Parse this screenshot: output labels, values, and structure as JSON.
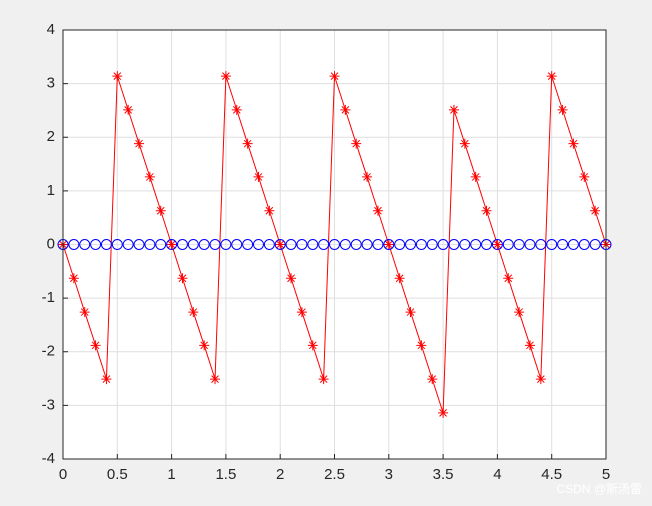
{
  "chart_data": {
    "type": "line",
    "x": [
      0,
      0.1,
      0.2,
      0.3,
      0.4,
      0.5,
      0.6,
      0.7,
      0.8,
      0.9,
      1,
      1.1,
      1.2,
      1.3,
      1.4,
      1.5,
      1.6,
      1.7,
      1.8,
      1.9,
      2,
      2.1,
      2.2,
      2.3,
      2.4,
      2.5,
      2.6,
      2.7,
      2.8,
      2.9,
      3,
      3.1,
      3.2,
      3.3,
      3.4,
      3.5,
      3.6,
      3.7,
      3.8,
      3.9,
      4,
      4.1,
      4.2,
      4.3,
      4.4,
      4.5,
      4.6,
      4.7,
      4.8,
      4.9,
      5
    ],
    "series": [
      {
        "color": "#ff0000",
        "marker": "star",
        "line": true,
        "values": [
          0,
          -0.63,
          -1.26,
          -1.88,
          -2.51,
          3.14,
          2.51,
          1.88,
          1.26,
          0.63,
          0,
          -0.63,
          -1.26,
          -1.88,
          -2.51,
          3.14,
          2.51,
          1.88,
          1.26,
          0.63,
          0,
          -0.63,
          -1.26,
          -1.88,
          -2.51,
          3.14,
          2.51,
          1.88,
          1.26,
          0.63,
          0,
          -0.63,
          -1.26,
          -1.88,
          -2.51,
          -3.14,
          2.51,
          1.88,
          1.26,
          0.63,
          0,
          -0.63,
          -1.26,
          -1.88,
          -2.51,
          3.14,
          2.51,
          1.88,
          1.26,
          0.63,
          0
        ]
      },
      {
        "color": "#0000ff",
        "marker": "circle",
        "line": false,
        "values": [
          0,
          0,
          0,
          0,
          0,
          0,
          0,
          0,
          0,
          0,
          0,
          0,
          0,
          0,
          0,
          0,
          0,
          0,
          0,
          0,
          0,
          0,
          0,
          0,
          0,
          0,
          0,
          0,
          0,
          0,
          0,
          0,
          0,
          0,
          0,
          0,
          0,
          0,
          0,
          0,
          0,
          0,
          0,
          0,
          0,
          0,
          0,
          0,
          0,
          0,
          0
        ]
      }
    ],
    "xlim": [
      0,
      5
    ],
    "xticks": [
      0,
      0.5,
      1,
      1.5,
      2,
      2.5,
      3,
      3.5,
      4,
      4.5,
      5
    ],
    "ylim": [
      -4,
      4
    ],
    "yticks": [
      -4,
      -3,
      -2,
      -1,
      0,
      1,
      2,
      3,
      4
    ],
    "grid": true
  },
  "watermark": "CSDN @斯汤雷"
}
